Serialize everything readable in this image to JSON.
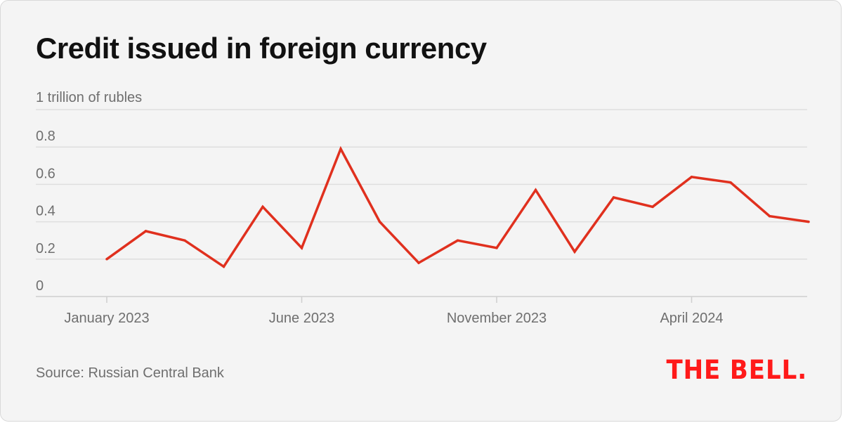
{
  "title": "Credit issued in foreign currency",
  "unit_label": "1 trillion of rubles",
  "source": "Source: Russian Central Bank",
  "logo": "THE BELL.",
  "colors": {
    "background": "#f4f4f4",
    "line": "#e0301e",
    "grid": "#dedede",
    "axis_text": "#6f6f6f",
    "logo": "#ff1a1a"
  },
  "chart_data": {
    "type": "line",
    "title": "Credit issued in foreign currency",
    "ylabel": "1 trillion of rubles",
    "xlabel": "",
    "ylim": [
      0,
      1.0
    ],
    "yticks": [
      0,
      0.2,
      0.4,
      0.6,
      0.8
    ],
    "ytick_labels": [
      "0",
      "0.2",
      "0.4",
      "0.6",
      "0.8"
    ],
    "grid": true,
    "x": [
      "2023-01",
      "2023-02",
      "2023-03",
      "2023-04",
      "2023-05",
      "2023-06",
      "2023-07",
      "2023-08",
      "2023-09",
      "2023-10",
      "2023-11",
      "2023-12",
      "2024-01",
      "2024-02",
      "2024-03",
      "2024-04",
      "2024-05",
      "2024-06",
      "2024-07"
    ],
    "xticks": [
      "2023-01",
      "2023-06",
      "2023-11",
      "2024-04"
    ],
    "xtick_labels": [
      "January 2023",
      "June 2023",
      "November 2023",
      "April 2024"
    ],
    "series": [
      {
        "values": [
          0.2,
          0.35,
          0.3,
          0.16,
          0.48,
          0.26,
          0.79,
          0.4,
          0.18,
          0.3,
          0.26,
          0.57,
          0.24,
          0.53,
          0.48,
          0.64,
          0.61,
          0.43,
          0.4
        ]
      }
    ]
  }
}
